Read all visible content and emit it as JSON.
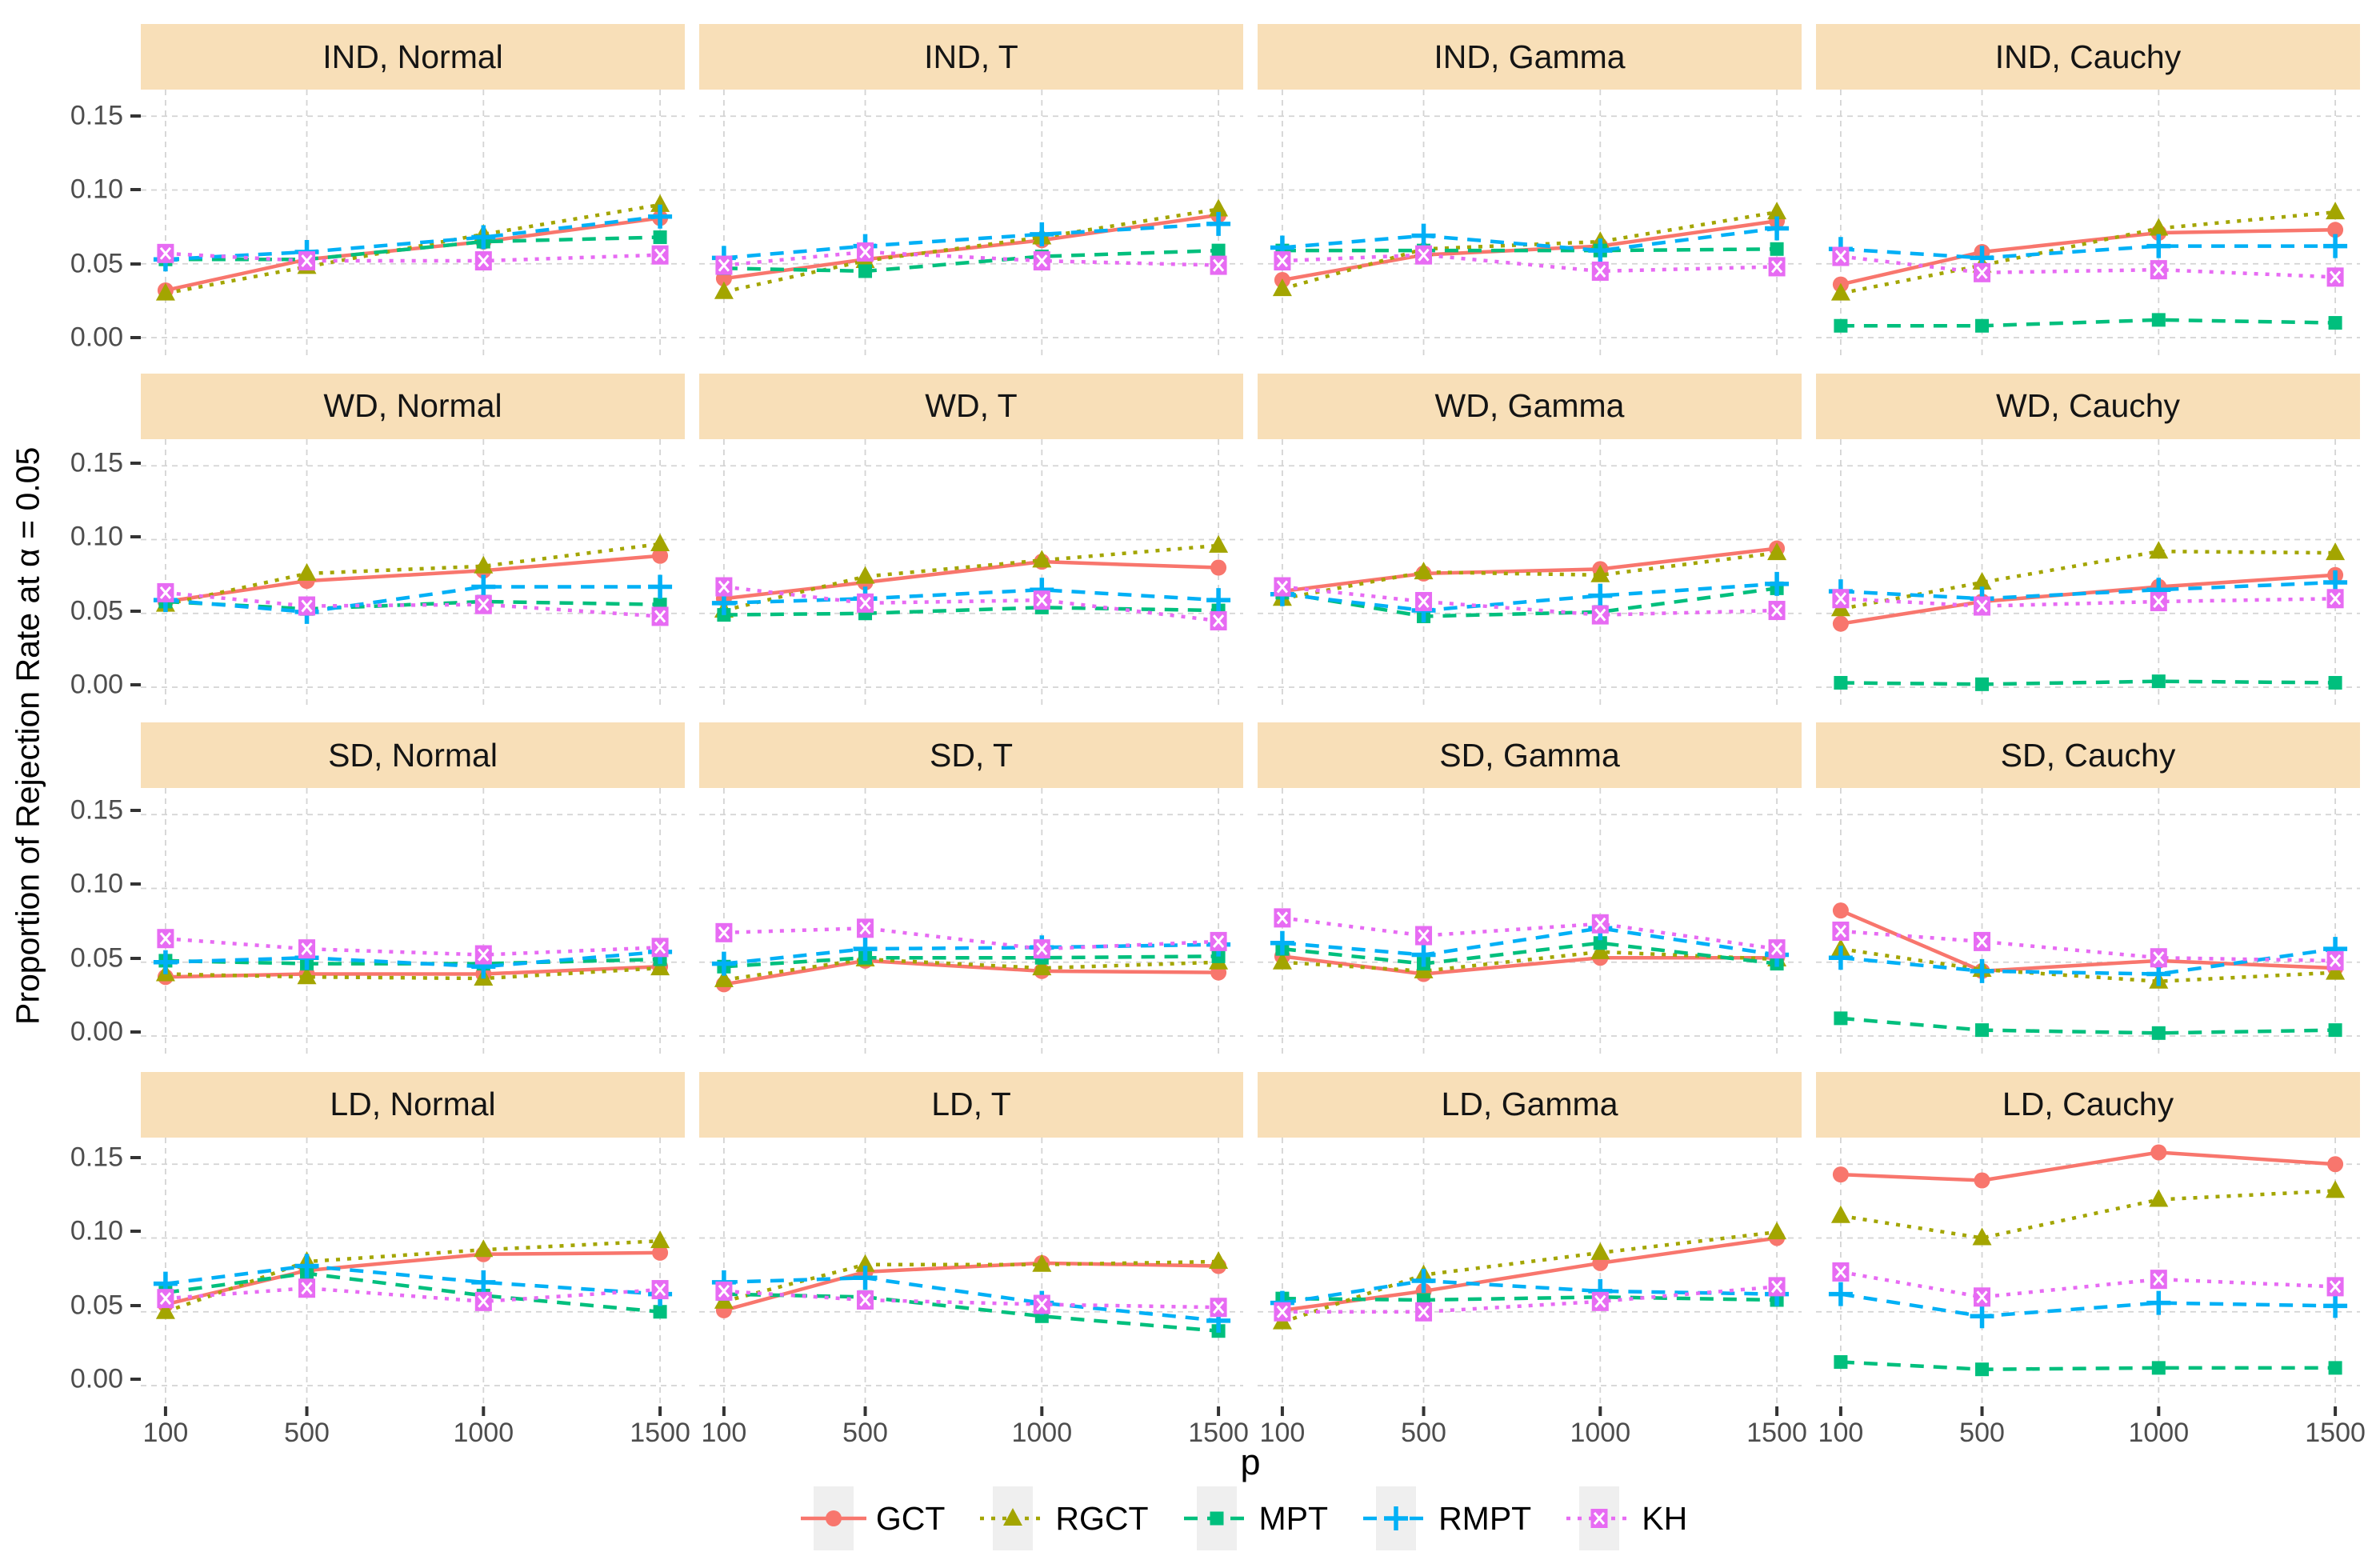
{
  "chart_data": {
    "type": "line",
    "title": "",
    "xlabel": "p",
    "ylabel": "Proportion of Rejection Rate at α = 0.05",
    "x": [
      100,
      500,
      1000,
      1500
    ],
    "xticks": [
      100,
      500,
      1000,
      1500
    ],
    "yticks": [
      0.0,
      0.05,
      0.1,
      0.15
    ],
    "ylim": [
      -0.013,
      0.168
    ],
    "xlim": [
      30,
      1570
    ],
    "grid": "major-dashed",
    "facet_rows": [
      "IND",
      "WD",
      "SD",
      "LD"
    ],
    "facet_cols": [
      "Normal",
      "T",
      "Gamma",
      "Cauchy"
    ],
    "legend_position": "bottom",
    "legend_order": [
      "GCT",
      "RGCT",
      "MPT",
      "RMPT",
      "KH"
    ],
    "styles": {
      "GCT": {
        "color": "#F8766D",
        "dash": "solid",
        "marker": "circle"
      },
      "RGCT": {
        "color": "#A3A500",
        "dash": "dotted",
        "marker": "triangle"
      },
      "MPT": {
        "color": "#00BF7D",
        "dash": "dashed",
        "marker": "square"
      },
      "RMPT": {
        "color": "#00B0F6",
        "dash": "dashed",
        "marker": "plus"
      },
      "KH": {
        "color": "#E76BF3",
        "dash": "dotted",
        "marker": "square-x"
      }
    },
    "facets": [
      {
        "label": "IND, Normal",
        "series": {
          "GCT": [
            0.032,
            0.053,
            0.065,
            0.081
          ],
          "RGCT": [
            0.03,
            0.048,
            0.07,
            0.09
          ],
          "MPT": [
            0.053,
            0.053,
            0.065,
            0.068
          ],
          "RMPT": [
            0.053,
            0.058,
            0.068,
            0.082
          ],
          "KH": [
            0.057,
            0.052,
            0.052,
            0.056
          ]
        }
      },
      {
        "label": "IND, T",
        "series": {
          "GCT": [
            0.04,
            0.053,
            0.066,
            0.083
          ],
          "RGCT": [
            0.031,
            0.052,
            0.068,
            0.087
          ],
          "MPT": [
            0.047,
            0.045,
            0.055,
            0.059
          ],
          "RMPT": [
            0.054,
            0.062,
            0.07,
            0.077
          ],
          "KH": [
            0.049,
            0.058,
            0.052,
            0.049
          ]
        }
      },
      {
        "label": "IND, Gamma",
        "series": {
          "GCT": [
            0.039,
            0.056,
            0.062,
            0.079
          ],
          "RGCT": [
            0.033,
            0.06,
            0.065,
            0.085
          ],
          "MPT": [
            0.059,
            0.059,
            0.059,
            0.06
          ],
          "RMPT": [
            0.061,
            0.069,
            0.059,
            0.074
          ],
          "KH": [
            0.052,
            0.056,
            0.045,
            0.048
          ]
        }
      },
      {
        "label": "IND, Cauchy",
        "series": {
          "GCT": [
            0.036,
            0.058,
            0.071,
            0.073
          ],
          "RGCT": [
            0.03,
            0.049,
            0.074,
            0.085
          ],
          "MPT": [
            0.008,
            0.008,
            0.012,
            0.01
          ],
          "RMPT": [
            0.06,
            0.054,
            0.062,
            0.062
          ],
          "KH": [
            0.055,
            0.044,
            0.046,
            0.041
          ]
        }
      },
      {
        "label": "WD, Normal",
        "series": {
          "GCT": [
            0.058,
            0.072,
            0.079,
            0.089
          ],
          "RGCT": [
            0.056,
            0.077,
            0.082,
            0.097
          ],
          "MPT": [
            0.058,
            0.053,
            0.058,
            0.056
          ],
          "RMPT": [
            0.059,
            0.051,
            0.068,
            0.068
          ],
          "KH": [
            0.064,
            0.055,
            0.056,
            0.048
          ]
        }
      },
      {
        "label": "WD, T",
        "series": {
          "GCT": [
            0.06,
            0.071,
            0.085,
            0.081
          ],
          "RGCT": [
            0.052,
            0.075,
            0.086,
            0.096
          ],
          "MPT": [
            0.049,
            0.05,
            0.054,
            0.052
          ],
          "RMPT": [
            0.057,
            0.06,
            0.066,
            0.059
          ],
          "KH": [
            0.068,
            0.057,
            0.059,
            0.045
          ]
        }
      },
      {
        "label": "WD, Gamma",
        "series": {
          "GCT": [
            0.065,
            0.077,
            0.08,
            0.094
          ],
          "RGCT": [
            0.06,
            0.078,
            0.076,
            0.091
          ],
          "MPT": [
            0.064,
            0.048,
            0.051,
            0.067
          ],
          "RMPT": [
            0.063,
            0.052,
            0.062,
            0.07
          ],
          "KH": [
            0.068,
            0.058,
            0.049,
            0.052
          ]
        }
      },
      {
        "label": "WD, Cauchy",
        "series": {
          "GCT": [
            0.043,
            0.058,
            0.068,
            0.076
          ],
          "RGCT": [
            0.053,
            0.071,
            0.092,
            0.091
          ],
          "MPT": [
            0.003,
            0.002,
            0.004,
            0.003
          ],
          "RMPT": [
            0.065,
            0.06,
            0.066,
            0.071
          ],
          "KH": [
            0.06,
            0.055,
            0.058,
            0.06
          ]
        }
      },
      {
        "label": "SD, Normal",
        "series": {
          "GCT": [
            0.04,
            0.042,
            0.042,
            0.047
          ],
          "RGCT": [
            0.042,
            0.04,
            0.039,
            0.046
          ],
          "MPT": [
            0.051,
            0.049,
            0.049,
            0.052
          ],
          "RMPT": [
            0.05,
            0.053,
            0.047,
            0.057
          ],
          "KH": [
            0.066,
            0.059,
            0.055,
            0.06
          ]
        }
      },
      {
        "label": "SD, T",
        "series": {
          "GCT": [
            0.035,
            0.051,
            0.044,
            0.043
          ],
          "RGCT": [
            0.038,
            0.052,
            0.046,
            0.05
          ],
          "MPT": [
            0.047,
            0.053,
            0.053,
            0.054
          ],
          "RMPT": [
            0.049,
            0.059,
            0.06,
            0.062
          ],
          "KH": [
            0.07,
            0.073,
            0.059,
            0.064
          ]
        }
      },
      {
        "label": "SD, Gamma",
        "series": {
          "GCT": [
            0.054,
            0.042,
            0.053,
            0.053
          ],
          "RGCT": [
            0.05,
            0.044,
            0.057,
            0.052
          ],
          "MPT": [
            0.059,
            0.049,
            0.063,
            0.049
          ],
          "RMPT": [
            0.063,
            0.055,
            0.073,
            0.055
          ],
          "KH": [
            0.08,
            0.068,
            0.076,
            0.059
          ]
        }
      },
      {
        "label": "SD, Cauchy",
        "series": {
          "GCT": [
            0.085,
            0.044,
            0.051,
            0.046
          ],
          "RGCT": [
            0.059,
            0.045,
            0.037,
            0.043
          ],
          "MPT": [
            0.012,
            0.004,
            0.002,
            0.004
          ],
          "RMPT": [
            0.053,
            0.044,
            0.042,
            0.059
          ],
          "KH": [
            0.071,
            0.064,
            0.053,
            0.051
          ]
        }
      },
      {
        "label": "LD, Normal",
        "series": {
          "GCT": [
            0.055,
            0.078,
            0.089,
            0.09
          ],
          "RGCT": [
            0.05,
            0.084,
            0.092,
            0.098
          ],
          "MPT": [
            0.063,
            0.076,
            0.061,
            0.05
          ],
          "RMPT": [
            0.069,
            0.081,
            0.07,
            0.062
          ],
          "KH": [
            0.059,
            0.066,
            0.057,
            0.065
          ]
        }
      },
      {
        "label": "LD, T",
        "series": {
          "GCT": [
            0.051,
            0.077,
            0.083,
            0.081
          ],
          "RGCT": [
            0.057,
            0.082,
            0.082,
            0.084
          ],
          "MPT": [
            0.062,
            0.06,
            0.047,
            0.037
          ],
          "RMPT": [
            0.07,
            0.073,
            0.056,
            0.044
          ],
          "KH": [
            0.064,
            0.058,
            0.055,
            0.053
          ]
        }
      },
      {
        "label": "LD, Gamma",
        "series": {
          "GCT": [
            0.051,
            0.064,
            0.083,
            0.1
          ],
          "RGCT": [
            0.043,
            0.075,
            0.09,
            0.104
          ],
          "MPT": [
            0.059,
            0.058,
            0.06,
            0.058
          ],
          "RMPT": [
            0.056,
            0.071,
            0.064,
            0.062
          ],
          "KH": [
            0.05,
            0.05,
            0.057,
            0.067
          ]
        }
      },
      {
        "label": "LD, Cauchy",
        "series": {
          "GCT": [
            0.143,
            0.139,
            0.158,
            0.15
          ],
          "RGCT": [
            0.115,
            0.1,
            0.126,
            0.132
          ],
          "MPT": [
            0.016,
            0.011,
            0.012,
            0.012
          ],
          "RMPT": [
            0.062,
            0.047,
            0.056,
            0.054
          ],
          "KH": [
            0.077,
            0.06,
            0.072,
            0.067
          ]
        }
      }
    ],
    "legend": {
      "items": [
        {
          "label": "GCT"
        },
        {
          "label": "RGCT"
        },
        {
          "label": "MPT"
        },
        {
          "label": "RMPT"
        },
        {
          "label": "KH"
        }
      ]
    },
    "theme": {
      "strip_fill": "#F8DFB8",
      "grid_color": "#D4D4D4",
      "tick_label_color": "#4d4d4d",
      "tick_mark_color": "#333333",
      "legend_key_fill": "#EFEFEF",
      "background": "#FFFFFF"
    }
  }
}
